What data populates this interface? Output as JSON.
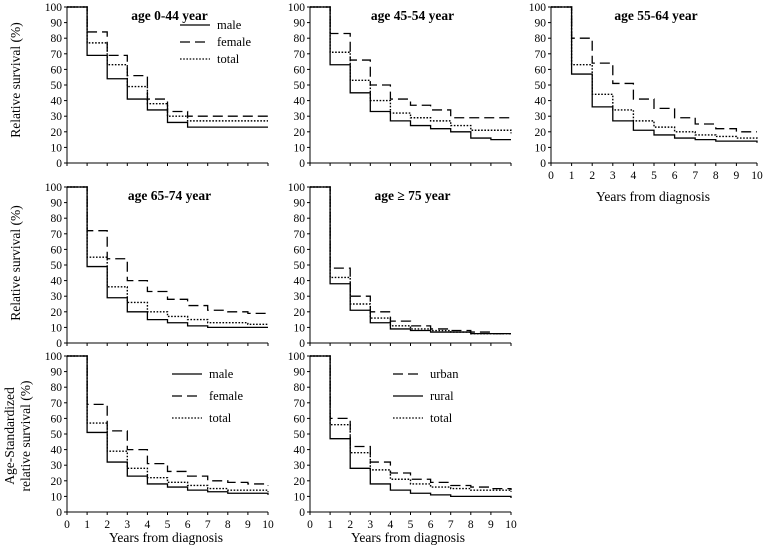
{
  "figure": {
    "ylabel_top": "Relative survival (%)",
    "ylabel_mid": "Relative survival (%)",
    "ylabel_bottom_line1": "Age-Standardized",
    "ylabel_bottom_line2": "relative survival  (%)",
    "xlabel": "Years from diagnosis"
  },
  "chart_data": [
    {
      "id": "age_0_44",
      "type": "line",
      "step": true,
      "title": "age 0-44 year",
      "x": [
        0,
        1,
        2,
        3,
        4,
        5,
        6,
        7,
        8,
        9,
        10
      ],
      "xlim": [
        0,
        10
      ],
      "ylim": [
        0,
        100
      ],
      "yticks": [
        0,
        10,
        20,
        30,
        40,
        50,
        60,
        70,
        80,
        90,
        100
      ],
      "xlabel": "",
      "ylabel": "Relative survival (%)",
      "legend_position": "top-right",
      "series": [
        {
          "name": "male",
          "style": "solid",
          "values": [
            100,
            69,
            54,
            41,
            34,
            26,
            23,
            23,
            23,
            23,
            23
          ]
        },
        {
          "name": "female",
          "style": "dashed",
          "values": [
            100,
            84,
            69,
            56,
            41,
            33,
            30,
            30,
            30,
            30,
            30
          ]
        },
        {
          "name": "total",
          "style": "dotted",
          "values": [
            100,
            77,
            63,
            49,
            38,
            30,
            27,
            27,
            27,
            27,
            27
          ]
        }
      ]
    },
    {
      "id": "age_45_54",
      "type": "line",
      "step": true,
      "title": "age 45-54 year",
      "x": [
        0,
        1,
        2,
        3,
        4,
        5,
        6,
        7,
        8,
        9,
        10
      ],
      "xlim": [
        0,
        10
      ],
      "ylim": [
        0,
        100
      ],
      "yticks": [
        0,
        10,
        20,
        30,
        40,
        50,
        60,
        70,
        80,
        90,
        100
      ],
      "xlabel": "",
      "ylabel": "",
      "legend_position": "none",
      "series": [
        {
          "name": "male",
          "style": "solid",
          "values": [
            100,
            63,
            45,
            33,
            27,
            24,
            22,
            20,
            16,
            15,
            15
          ]
        },
        {
          "name": "female",
          "style": "dashed",
          "values": [
            100,
            83,
            66,
            50,
            41,
            37,
            34,
            29,
            29,
            29,
            27
          ]
        },
        {
          "name": "total",
          "style": "dotted",
          "values": [
            100,
            71,
            53,
            40,
            32,
            29,
            27,
            24,
            21,
            21,
            19
          ]
        }
      ]
    },
    {
      "id": "age_55_64",
      "type": "line",
      "step": true,
      "title": "age 55-64 year",
      "x": [
        0,
        1,
        2,
        3,
        4,
        5,
        6,
        7,
        8,
        9,
        10
      ],
      "xlim": [
        0,
        10
      ],
      "ylim": [
        0,
        100
      ],
      "yticks": [
        0,
        10,
        20,
        30,
        40,
        50,
        60,
        70,
        80,
        90,
        100
      ],
      "xlabel": "Years from diagnosis",
      "ylabel": "",
      "legend_position": "none",
      "series": [
        {
          "name": "male",
          "style": "solid",
          "values": [
            100,
            57,
            36,
            27,
            21,
            18,
            16,
            15,
            14,
            14,
            13
          ]
        },
        {
          "name": "female",
          "style": "dashed",
          "values": [
            100,
            80,
            64,
            51,
            41,
            35,
            29,
            25,
            22,
            20,
            20
          ]
        },
        {
          "name": "total",
          "style": "dotted",
          "values": [
            100,
            63,
            44,
            34,
            27,
            23,
            20,
            18,
            17,
            16,
            15
          ]
        }
      ]
    },
    {
      "id": "age_65_74",
      "type": "line",
      "step": true,
      "title": "age 65-74 year",
      "x": [
        0,
        1,
        2,
        3,
        4,
        5,
        6,
        7,
        8,
        9,
        10
      ],
      "xlim": [
        0,
        10
      ],
      "ylim": [
        0,
        100
      ],
      "yticks": [
        0,
        10,
        20,
        30,
        40,
        50,
        60,
        70,
        80,
        90,
        100
      ],
      "xlabel": "",
      "ylabel": "Relative survival (%)",
      "legend_position": "none",
      "series": [
        {
          "name": "male",
          "style": "solid",
          "values": [
            100,
            49,
            29,
            20,
            15,
            13,
            11,
            10,
            10,
            10,
            10
          ]
        },
        {
          "name": "female",
          "style": "dashed",
          "values": [
            100,
            72,
            54,
            40,
            33,
            28,
            24,
            21,
            20,
            19,
            19
          ]
        },
        {
          "name": "total",
          "style": "dotted",
          "values": [
            100,
            55,
            36,
            26,
            20,
            17,
            15,
            13,
            13,
            12,
            12
          ]
        }
      ]
    },
    {
      "id": "age_75_plus",
      "type": "line",
      "step": true,
      "title": "age  ≥ 75 year",
      "x": [
        0,
        1,
        2,
        3,
        4,
        5,
        6,
        7,
        8,
        9,
        10
      ],
      "xlim": [
        0,
        10
      ],
      "ylim": [
        0,
        100
      ],
      "yticks": [
        0,
        10,
        20,
        30,
        40,
        50,
        60,
        70,
        80,
        90,
        100
      ],
      "xlabel": "",
      "ylabel": "",
      "legend_position": "none",
      "series": [
        {
          "name": "male",
          "style": "solid",
          "values": [
            100,
            38,
            21,
            13,
            9,
            8,
            7,
            7,
            6,
            6,
            6
          ]
        },
        {
          "name": "female",
          "style": "dashed",
          "values": [
            100,
            48,
            30,
            20,
            14,
            11,
            9,
            8,
            7,
            6,
            6
          ]
        },
        {
          "name": "total",
          "style": "dotted",
          "values": [
            100,
            42,
            25,
            16,
            11,
            9,
            8,
            7,
            6,
            6,
            6
          ]
        }
      ]
    },
    {
      "id": "age_std_sex",
      "type": "line",
      "step": true,
      "title": "",
      "x": [
        0,
        1,
        2,
        3,
        4,
        5,
        6,
        7,
        8,
        9,
        10
      ],
      "xlim": [
        0,
        10
      ],
      "ylim": [
        0,
        100
      ],
      "yticks": [
        0,
        10,
        20,
        30,
        40,
        50,
        60,
        70,
        80,
        90,
        100
      ],
      "xticks": [
        0,
        1,
        2,
        3,
        4,
        5,
        6,
        7,
        8,
        9,
        10
      ],
      "xlabel": "Years from diagnosis",
      "ylabel": "Age-Standardized relative survival  (%)",
      "legend_position": "top-right",
      "series": [
        {
          "name": "male",
          "style": "solid",
          "values": [
            100,
            51,
            32,
            23,
            18,
            16,
            14,
            13,
            12,
            12,
            11
          ]
        },
        {
          "name": "female",
          "style": "dashed",
          "values": [
            100,
            69,
            52,
            40,
            31,
            26,
            23,
            20,
            19,
            18,
            17
          ]
        },
        {
          "name": "total",
          "style": "dotted",
          "values": [
            100,
            57,
            39,
            28,
            22,
            19,
            17,
            15,
            14,
            14,
            13
          ]
        }
      ]
    },
    {
      "id": "age_std_area",
      "type": "line",
      "step": true,
      "title": "",
      "x": [
        0,
        1,
        2,
        3,
        4,
        5,
        6,
        7,
        8,
        9,
        10
      ],
      "xlim": [
        0,
        10
      ],
      "ylim": [
        0,
        100
      ],
      "yticks": [
        0,
        10,
        20,
        30,
        40,
        50,
        60,
        70,
        80,
        90,
        100
      ],
      "xticks": [
        0,
        1,
        2,
        3,
        4,
        5,
        6,
        7,
        8,
        9,
        10
      ],
      "xlabel": "Years from diagnosis",
      "ylabel": "",
      "legend_position": "top-right",
      "series": [
        {
          "name": "urban",
          "style": "dashed",
          "values": [
            100,
            60,
            42,
            32,
            25,
            21,
            19,
            17,
            16,
            15,
            14
          ]
        },
        {
          "name": "rural",
          "style": "solid",
          "values": [
            100,
            47,
            28,
            18,
            14,
            12,
            11,
            10,
            10,
            10,
            9
          ]
        },
        {
          "name": "total",
          "style": "dotted",
          "values": [
            100,
            56,
            38,
            27,
            21,
            18,
            16,
            15,
            14,
            14,
            13
          ]
        }
      ]
    }
  ]
}
